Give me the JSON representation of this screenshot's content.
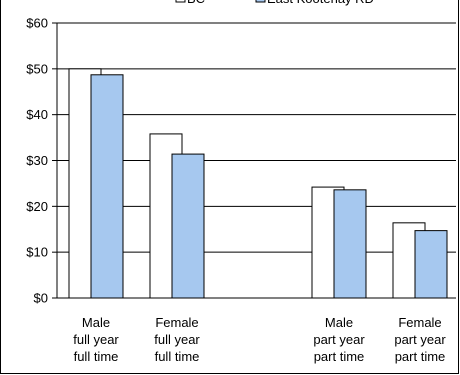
{
  "chart_data": {
    "type": "bar",
    "title": "",
    "xlabel": "",
    "ylabel": "",
    "ylim": [
      0,
      60
    ],
    "yticks": [
      "$0",
      "$10",
      "$20",
      "$30",
      "$40",
      "$50",
      "$60"
    ],
    "grid": true,
    "legend_position": "top",
    "categories": [
      [
        "Male",
        "full year",
        "full time"
      ],
      [
        "Female",
        "full year",
        "full time"
      ],
      [
        "Male",
        "part year",
        "part time"
      ],
      [
        "Female",
        "part year",
        "part time"
      ]
    ],
    "series": [
      {
        "name": "BC",
        "color": "#ffffff",
        "values": [
          50,
          35.8,
          24.2,
          16.4
        ]
      },
      {
        "name": "East Kootenay RD",
        "color": "#a6c8ef",
        "values": [
          48.7,
          31.4,
          23.6,
          14.7
        ]
      }
    ]
  }
}
